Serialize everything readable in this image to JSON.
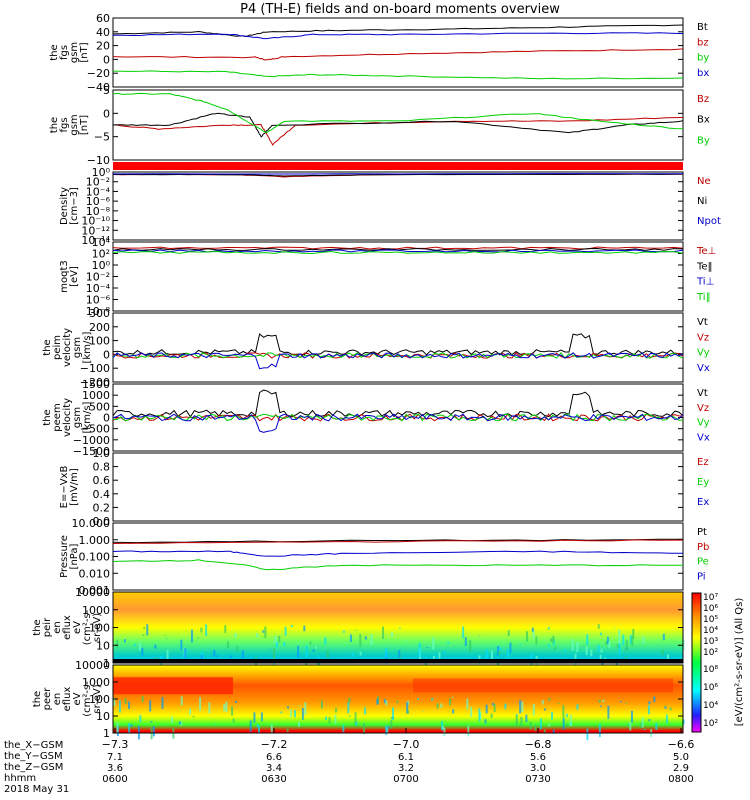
{
  "title": "P4 (TH-E) fields and on-board moments overview",
  "colors": {
    "black": "#000000",
    "red": "#c00000",
    "green": "#00d000",
    "blue": "#0000cc",
    "bright_red": "#ff0000"
  },
  "chart_data": [
    {
      "id": "fgs_gse",
      "type": "line",
      "ylabel": [
        "the",
        "fgs",
        "gsm",
        "[nT]"
      ],
      "yticks": [
        "60",
        "40",
        "20",
        "0",
        "−20",
        "−40"
      ],
      "ylim": [
        -40,
        60
      ],
      "series": [
        {
          "name": "Bt",
          "color": "black",
          "values": [
            [
              0,
              37
            ],
            [
              15,
              40
            ],
            [
              23,
              33
            ],
            [
              27,
              40
            ],
            [
              40,
              42
            ],
            [
              60,
              44
            ],
            [
              80,
              47
            ],
            [
              100,
              50
            ]
          ]
        },
        {
          "name": "bz",
          "color": "red",
          "values": [
            [
              0,
              4
            ],
            [
              25,
              3
            ],
            [
              27,
              -1
            ],
            [
              30,
              4
            ],
            [
              50,
              8
            ],
            [
              75,
              12
            ],
            [
              100,
              15
            ]
          ]
        },
        {
          "name": "by",
          "color": "green",
          "values": [
            [
              0,
              -17
            ],
            [
              20,
              -18
            ],
            [
              27,
              -25
            ],
            [
              35,
              -22
            ],
            [
              50,
              -24
            ],
            [
              75,
              -28
            ],
            [
              100,
              -27
            ]
          ]
        },
        {
          "name": "bx",
          "color": "blue",
          "values": [
            [
              0,
              35
            ],
            [
              20,
              37
            ],
            [
              27,
              30
            ],
            [
              35,
              36
            ],
            [
              50,
              36
            ],
            [
              75,
              38
            ],
            [
              100,
              38
            ]
          ]
        }
      ]
    },
    {
      "id": "fgs_gsm_b",
      "type": "line",
      "ylabel": [
        "the",
        "fgs",
        "gsm",
        "[nT]"
      ],
      "yticks": [
        "5",
        "0",
        "−5",
        "−10"
      ],
      "ylim": [
        -12,
        6
      ],
      "series": [
        {
          "name": "Bz",
          "color": "red",
          "values": [
            [
              0,
              -3
            ],
            [
              8,
              -4
            ],
            [
              20,
              -3
            ],
            [
              26,
              -3
            ],
            [
              28,
              -8
            ],
            [
              32,
              -3
            ],
            [
              60,
              -2
            ],
            [
              80,
              -2
            ],
            [
              100,
              -1
            ]
          ]
        },
        {
          "name": "Bx",
          "color": "black",
          "values": [
            [
              0,
              -3
            ],
            [
              10,
              -3
            ],
            [
              18,
              0
            ],
            [
              24,
              -1
            ],
            [
              26,
              -6
            ],
            [
              28,
              -3
            ],
            [
              60,
              -2
            ],
            [
              80,
              -5
            ],
            [
              90,
              -3
            ],
            [
              100,
              -2
            ]
          ]
        },
        {
          "name": "By",
          "color": "green",
          "values": [
            [
              0,
              5
            ],
            [
              10,
              5
            ],
            [
              16,
              3
            ],
            [
              20,
              1
            ],
            [
              27,
              -5
            ],
            [
              30,
              -2
            ],
            [
              50,
              -2
            ],
            [
              74,
              0
            ],
            [
              85,
              -2
            ],
            [
              100,
              -4
            ]
          ]
        }
      ]
    },
    {
      "id": "density",
      "type": "line",
      "ylabel": [
        "Density",
        "[cm−3]"
      ],
      "yticks": [
        "10⁰",
        "10⁻²",
        "10⁻⁴",
        "10⁻⁶",
        "10⁻⁸",
        "10⁻¹⁰",
        "10⁻¹²",
        "10⁻¹⁴"
      ],
      "series": [
        {
          "name": "Ne",
          "color": "red",
          "values": [
            [
              0,
              0.3
            ],
            [
              20,
              0.3
            ],
            [
              30,
              0.1
            ],
            [
              50,
              0.3
            ],
            [
              100,
              0.35
            ]
          ]
        },
        {
          "name": "Ni",
          "color": "black",
          "values": [
            [
              0,
              0.3
            ],
            [
              20,
              0.3
            ],
            [
              30,
              0.15
            ],
            [
              50,
              0.3
            ],
            [
              100,
              0.35
            ]
          ]
        },
        {
          "name": "Npot",
          "color": "blue",
          "values": [
            [
              0,
              0.4
            ],
            [
              100,
              0.45
            ]
          ]
        }
      ]
    },
    {
      "id": "temperature",
      "type": "line",
      "ylabel": [
        "moqt3",
        "[eV]"
      ],
      "yticks": [
        "10⁴",
        "10²",
        "10⁰",
        "10⁻²",
        "10⁻⁴",
        "10⁻⁶",
        "10⁻⁸"
      ],
      "series": [
        {
          "name": "Te⊥",
          "color": "red"
        },
        {
          "name": "Te‖",
          "color": "black"
        },
        {
          "name": "Ti⊥",
          "color": "blue"
        },
        {
          "name": "Ti‖",
          "color": "green"
        }
      ]
    },
    {
      "id": "peim_velocity",
      "type": "line",
      "ylabel": [
        "the",
        "peim",
        "velocity",
        "gsm",
        "[km/s]"
      ],
      "yticks": [
        "300",
        "200",
        "100",
        "0",
        "−100",
        "−200"
      ],
      "ylim": [
        -200,
        320
      ],
      "series": [
        {
          "name": "Vt",
          "color": "black"
        },
        {
          "name": "Vz",
          "color": "red"
        },
        {
          "name": "Vy",
          "color": "green"
        },
        {
          "name": "Vx",
          "color": "blue"
        }
      ]
    },
    {
      "id": "peem_velocity",
      "type": "line",
      "ylabel": [
        "the",
        "peem",
        "velocity",
        "gsm",
        "[km/s]"
      ],
      "yticks": [
        "1500",
        "1000",
        "500",
        "0",
        "−500",
        "−1000",
        "−1500"
      ],
      "ylim": [
        -1500,
        1500
      ],
      "series": [
        {
          "name": "Vt",
          "color": "black"
        },
        {
          "name": "Vz",
          "color": "red"
        },
        {
          "name": "Vy",
          "color": "green"
        },
        {
          "name": "Vx",
          "color": "blue"
        }
      ]
    },
    {
      "id": "efield",
      "type": "line",
      "ylabel": [
        "E=−VxB",
        "[mV/m]"
      ],
      "yticks": [
        "1.0",
        "0.8",
        "0.6",
        "0.4",
        "0.2",
        "0.0"
      ],
      "ylim": [
        0,
        1
      ],
      "series": [
        {
          "name": "Ez",
          "color": "red"
        },
        {
          "name": "Ey",
          "color": "green"
        },
        {
          "name": "Ex",
          "color": "blue"
        }
      ]
    },
    {
      "id": "pressure",
      "type": "line",
      "ylabel": [
        "Pressure",
        "[nPa]"
      ],
      "yticks": [
        "10.000",
        "1.000",
        "0.100",
        "0.010",
        "0.001"
      ],
      "series": [
        {
          "name": "Pt",
          "color": "black",
          "values": [
            [
              0,
              0.7
            ],
            [
              50,
              0.9
            ],
            [
              100,
              1.0
            ]
          ]
        },
        {
          "name": "Pb",
          "color": "red",
          "values": [
            [
              0,
              0.6
            ],
            [
              50,
              0.8
            ],
            [
              100,
              0.95
            ]
          ]
        },
        {
          "name": "Pe",
          "color": "green",
          "values": [
            [
              0,
              0.05
            ],
            [
              15,
              0.06
            ],
            [
              27,
              0.015
            ],
            [
              40,
              0.03
            ],
            [
              70,
              0.03
            ],
            [
              100,
              0.03
            ]
          ]
        },
        {
          "name": "Pi",
          "color": "blue",
          "values": [
            [
              0,
              0.2
            ],
            [
              20,
              0.2
            ],
            [
              27,
              0.1
            ],
            [
              40,
              0.15
            ],
            [
              75,
              0.2
            ],
            [
              100,
              0.15
            ]
          ]
        }
      ]
    },
    {
      "id": "peir_eflux",
      "type": "heatmap",
      "ylabel": [
        "the",
        "peir",
        "en",
        "eflux",
        "eV",
        "(cm²-s-",
        "sr-eV)"
      ],
      "yticks": [
        "10000",
        "1000",
        "100",
        "10",
        "1"
      ]
    },
    {
      "id": "peer_eflux",
      "type": "heatmap",
      "ylabel": [
        "the",
        "peer",
        "en",
        "eflux",
        "eV",
        "(cm²-s-",
        "sr-eV)"
      ],
      "yticks": [
        "10000",
        "1000",
        "100",
        "10",
        "1"
      ]
    }
  ],
  "colorbar": {
    "label": "[eV/(cm²-s-sr-eV)] (All Qs)",
    "ticks_top": [
      "10⁷",
      "10⁶",
      "10⁵",
      "10⁴",
      "10³",
      "10²"
    ],
    "ticks_bottom": [
      "10⁸",
      "10⁶",
      "10⁴",
      "10²"
    ]
  },
  "xaxis": {
    "labels": [
      "the_X−GSM",
      "the_Y−GSM",
      "the_Z−GSM",
      "hhmm",
      "2018 May 31"
    ],
    "ticks": [
      {
        "x": "−7.3",
        "y": "7.1",
        "z": "3.6",
        "t": "0600"
      },
      {
        "x": "−7.2",
        "y": "6.6",
        "z": "3.4",
        "t": "0630"
      },
      {
        "x": "−7.0",
        "y": "6.1",
        "z": "3.2",
        "t": "0700"
      },
      {
        "x": "−6.8",
        "y": "5.6",
        "z": "3.0",
        "t": "0730"
      },
      {
        "x": "−6.6",
        "y": "5.0",
        "z": "2.9",
        "t": "0800"
      }
    ]
  }
}
